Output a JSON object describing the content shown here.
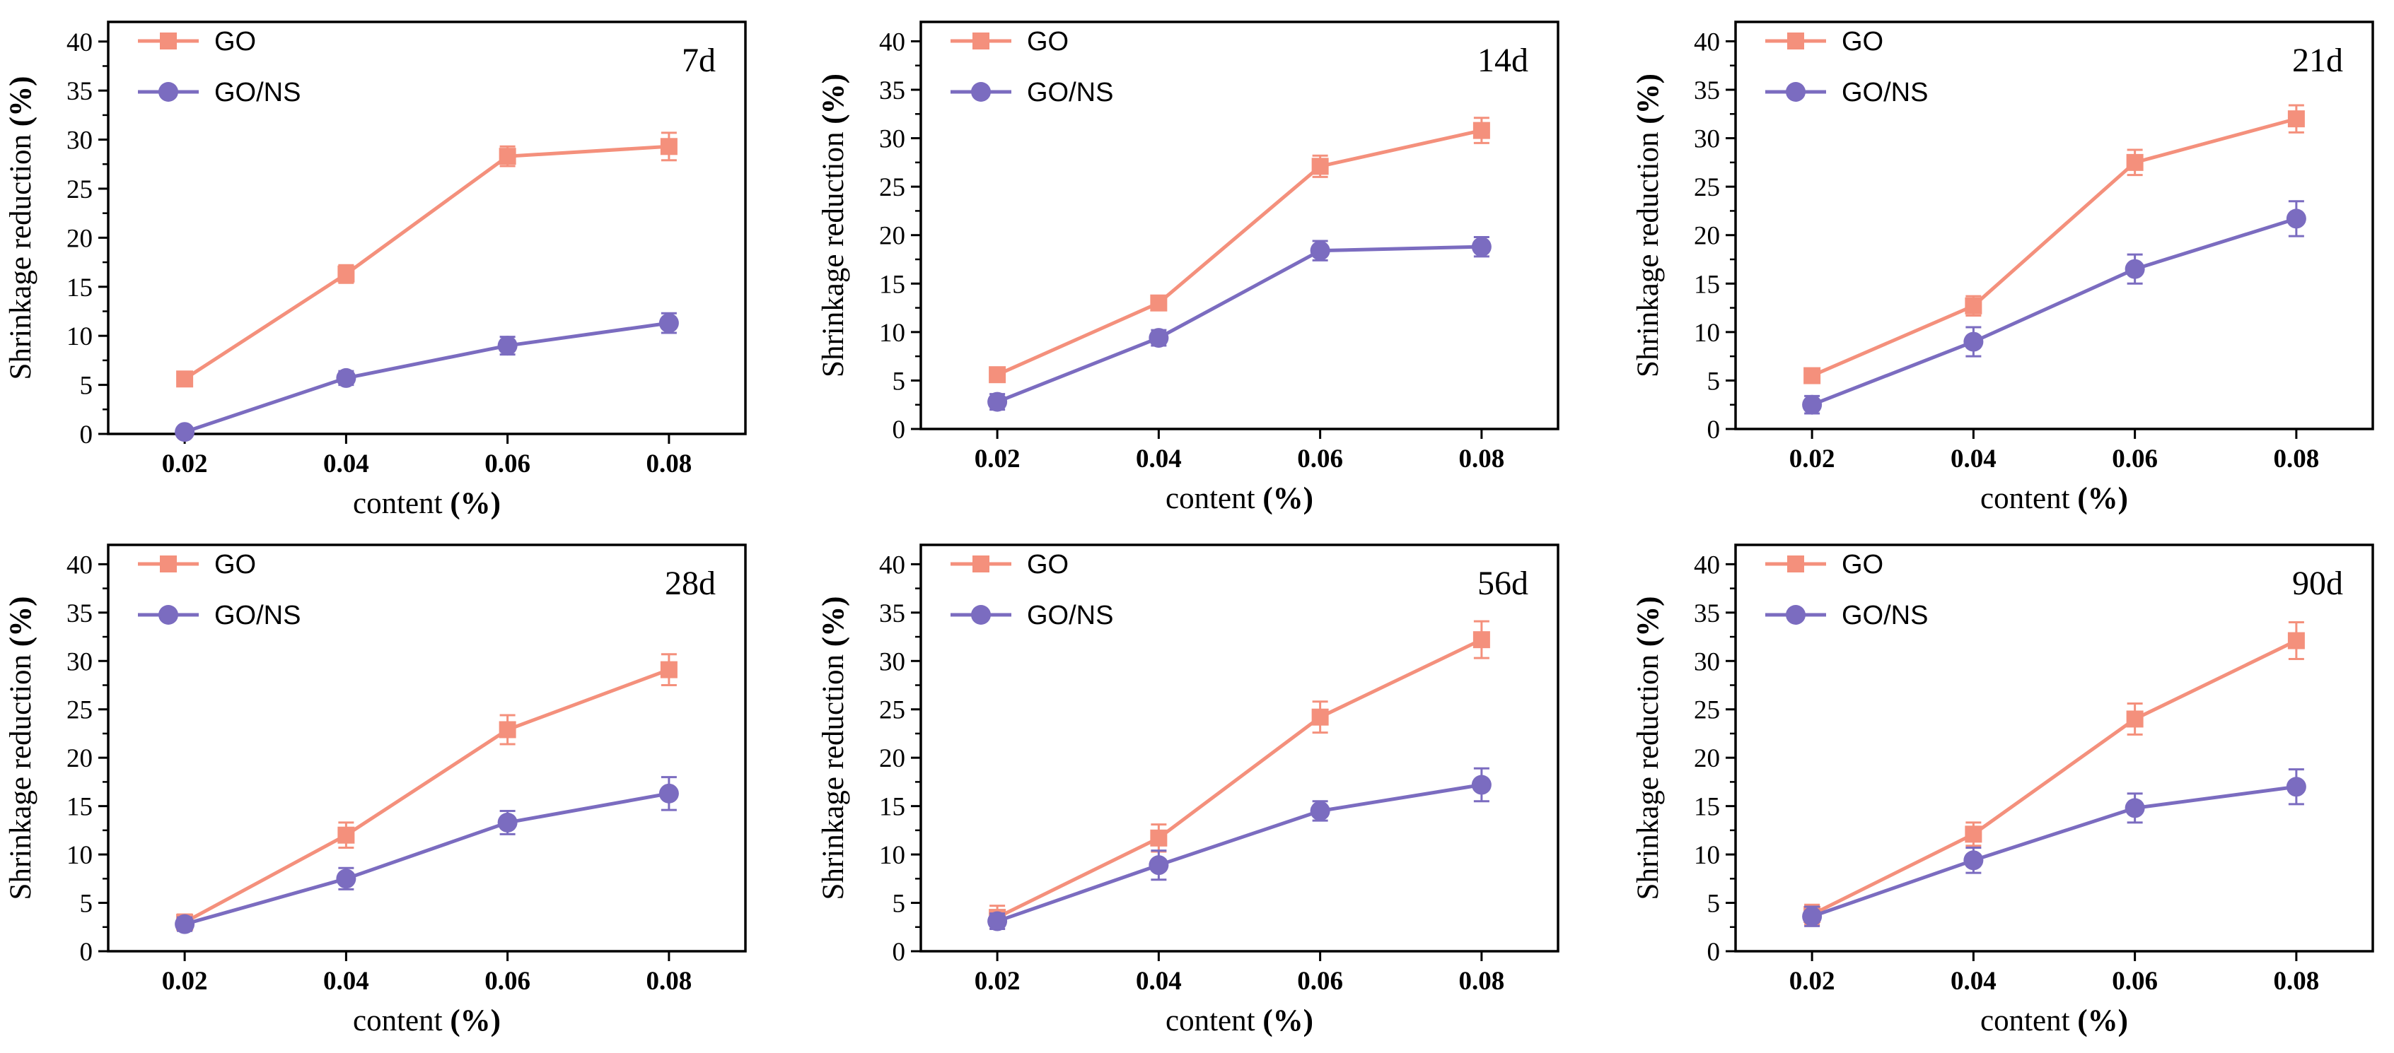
{
  "colors": {
    "go": "#F4907C",
    "gons": "#7B6CC0",
    "axis": "#000000"
  },
  "axis_text": {
    "xlabel_plain": "content ",
    "xlabel_bold": "(%)",
    "ylabel_plain": "Shrinkage reduction ",
    "ylabel_bold": "(%)"
  },
  "chart_data": [
    {
      "type": "line",
      "title": "7d",
      "x": [
        "0.02",
        "0.04",
        "0.06",
        "0.08"
      ],
      "xlabel": "content (%)",
      "ylabel": "Shrinkage reduction (%)",
      "ylim": [
        0,
        42
      ],
      "yticks": [
        0,
        5,
        10,
        15,
        20,
        25,
        30,
        35,
        40
      ],
      "legend_position": "top-left",
      "series": [
        {
          "name": "GO",
          "marker": "square",
          "values": [
            5.6,
            16.3,
            28.3,
            29.3
          ],
          "errors": [
            0.4,
            0.9,
            1.0,
            1.4
          ]
        },
        {
          "name": "GO/NS",
          "marker": "circle",
          "values": [
            0.2,
            5.7,
            9.0,
            11.3
          ],
          "errors": [
            0.2,
            0.7,
            0.9,
            1.0
          ]
        }
      ]
    },
    {
      "type": "line",
      "title": "14d",
      "x": [
        "0.02",
        "0.04",
        "0.06",
        "0.08"
      ],
      "xlabel": "content (%)",
      "ylabel": "Shrinkage reduction (%)",
      "ylim": [
        0,
        42
      ],
      "yticks": [
        0,
        5,
        10,
        15,
        20,
        25,
        30,
        35,
        40
      ],
      "legend_position": "top-left",
      "series": [
        {
          "name": "GO",
          "marker": "square",
          "values": [
            5.6,
            13.0,
            27.1,
            30.8
          ],
          "errors": [
            0.6,
            0.6,
            1.1,
            1.3
          ]
        },
        {
          "name": "GO/NS",
          "marker": "circle",
          "values": [
            2.8,
            9.4,
            18.4,
            18.8
          ],
          "errors": [
            0.8,
            0.8,
            1.0,
            1.0
          ]
        }
      ]
    },
    {
      "type": "line",
      "title": "21d",
      "x": [
        "0.02",
        "0.04",
        "0.06",
        "0.08"
      ],
      "xlabel": "content (%)",
      "ylabel": "Shrinkage reduction (%)",
      "ylim": [
        0,
        42
      ],
      "yticks": [
        0,
        5,
        10,
        15,
        20,
        25,
        30,
        35,
        40
      ],
      "legend_position": "top-left",
      "series": [
        {
          "name": "GO",
          "marker": "square",
          "values": [
            5.5,
            12.7,
            27.5,
            32.0
          ],
          "errors": [
            0.7,
            1.0,
            1.3,
            1.4
          ]
        },
        {
          "name": "GO/NS",
          "marker": "circle",
          "values": [
            2.5,
            9.0,
            16.5,
            21.7
          ],
          "errors": [
            0.9,
            1.5,
            1.5,
            1.8
          ]
        }
      ]
    },
    {
      "type": "line",
      "title": "28d",
      "x": [
        "0.02",
        "0.04",
        "0.06",
        "0.08"
      ],
      "xlabel": "content (%)",
      "ylabel": "Shrinkage reduction (%)",
      "ylim": [
        0,
        42
      ],
      "yticks": [
        0,
        5,
        10,
        15,
        20,
        25,
        30,
        35,
        40
      ],
      "legend_position": "top-left",
      "series": [
        {
          "name": "GO",
          "marker": "square",
          "values": [
            3.0,
            12.0,
            22.9,
            29.1
          ],
          "errors": [
            0.8,
            1.3,
            1.5,
            1.6
          ]
        },
        {
          "name": "GO/NS",
          "marker": "circle",
          "values": [
            2.8,
            7.5,
            13.3,
            16.3
          ],
          "errors": [
            0.7,
            1.1,
            1.2,
            1.7
          ]
        }
      ]
    },
    {
      "type": "line",
      "title": "56d",
      "x": [
        "0.02",
        "0.04",
        "0.06",
        "0.08"
      ],
      "xlabel": "content (%)",
      "ylabel": "Shrinkage reduction (%)",
      "ylim": [
        0,
        42
      ],
      "yticks": [
        0,
        5,
        10,
        15,
        20,
        25,
        30,
        35,
        40
      ],
      "legend_position": "top-left",
      "series": [
        {
          "name": "GO",
          "marker": "square",
          "values": [
            3.5,
            11.7,
            24.2,
            32.2
          ],
          "errors": [
            1.2,
            1.4,
            1.6,
            1.9
          ]
        },
        {
          "name": "GO/NS",
          "marker": "circle",
          "values": [
            3.1,
            8.9,
            14.5,
            17.2
          ],
          "errors": [
            0.8,
            1.5,
            1.0,
            1.7
          ]
        }
      ]
    },
    {
      "type": "line",
      "title": "90d",
      "x": [
        "0.02",
        "0.04",
        "0.06",
        "0.08"
      ],
      "xlabel": "content (%)",
      "ylabel": "Shrinkage reduction (%)",
      "ylim": [
        0,
        42
      ],
      "yticks": [
        0,
        5,
        10,
        15,
        20,
        25,
        30,
        35,
        40
      ],
      "legend_position": "top-left",
      "series": [
        {
          "name": "GO",
          "marker": "square",
          "values": [
            3.8,
            12.1,
            24.0,
            32.1
          ],
          "errors": [
            1.0,
            1.2,
            1.6,
            1.9
          ]
        },
        {
          "name": "GO/NS",
          "marker": "circle",
          "values": [
            3.6,
            9.4,
            14.8,
            17.0
          ],
          "errors": [
            1.0,
            1.3,
            1.5,
            1.8
          ]
        }
      ]
    }
  ]
}
